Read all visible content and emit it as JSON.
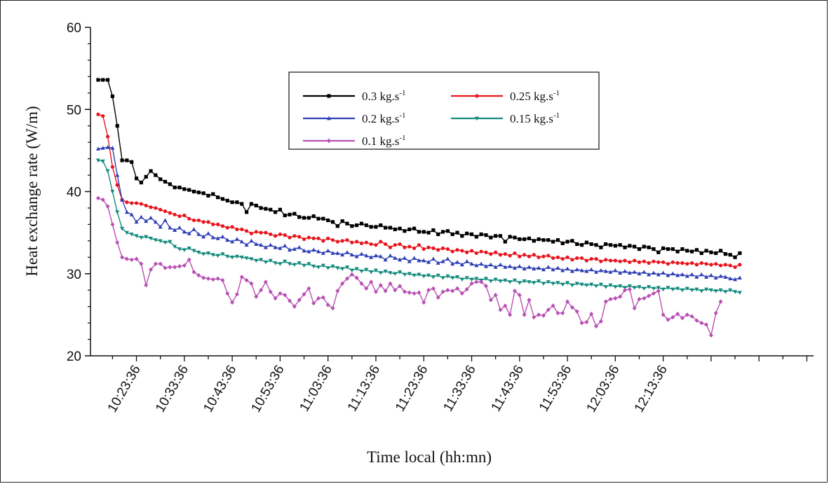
{
  "chart_data": {
    "type": "line",
    "title": "",
    "xlabel": "Time local (hh:mn)",
    "ylabel": "Heat exchange rate (W/m)",
    "ylim": [
      20,
      60
    ],
    "yticks": [
      "20",
      "30",
      "40",
      "50",
      "60"
    ],
    "xtick_labels": [
      "10:23:36",
      "10:33:36",
      "10:43:36",
      "10:53:36",
      "11:03:36",
      "11:13:36",
      "11:23:36",
      "11:33:36",
      "11:43:36",
      "11:53:36",
      "12:03:36",
      "12:13:36"
    ],
    "x_start": "10:15:36",
    "x_end": "12:29:36",
    "x_step_seconds": 60,
    "xlim": [
      "10:14:00",
      "12:45:00"
    ],
    "grid": false,
    "legend_position": "top-center",
    "series": [
      {
        "name": "0.3 kg.s-1",
        "legend_base": "0.3 kg.s",
        "legend_sup": "-1",
        "color": "#000000",
        "marker": "square",
        "values": [
          53.6,
          53.6,
          53.6,
          51.6,
          48,
          43.8,
          43.8,
          43.6,
          41.6,
          41.1,
          41.8,
          42.5,
          42,
          41.5,
          41.2,
          40.9,
          40.5,
          40.5,
          40.3,
          40.2,
          40,
          39.9,
          39.8,
          39.5,
          39.7,
          39.3,
          39.1,
          38.9,
          38.7,
          38.7,
          38.5,
          37.5,
          38.5,
          38.3,
          38,
          37.9,
          37.8,
          37.5,
          37.8,
          37.1,
          37.2,
          37.3,
          36.9,
          36.8,
          36.8,
          37,
          36.7,
          36.7,
          36.5,
          36.3,
          35.8,
          36.4,
          36.1,
          35.8,
          35.9,
          36.1,
          35.9,
          35.7,
          35.7,
          35.9,
          35.6,
          35.6,
          35.4,
          35.5,
          35.2,
          35.4,
          35.5,
          35.1,
          35.1,
          35.0,
          35.3,
          34.8,
          35.1,
          35.2,
          34.8,
          35.0,
          34.6,
          34.9,
          34.8,
          34.5,
          34.8,
          34.7,
          34.4,
          34.6,
          34.6,
          33.9,
          34.5,
          34.4,
          34.2,
          34.2,
          34.3,
          34,
          34.2,
          34.1,
          34.1,
          33.9,
          34.1,
          33.7,
          33.9,
          34.0,
          33.6,
          33.5,
          33.8,
          33.6,
          33.5,
          33.2,
          33.6,
          33.5,
          33.4,
          33.5,
          33.2,
          33.4,
          33.3,
          33.0,
          33.3,
          33.2,
          33.0,
          32.6,
          33.1,
          33.0,
          33.0,
          32.7,
          33.0,
          32.8,
          32.7,
          32.9,
          32.5,
          32.8,
          32.6,
          32.5,
          32.8,
          32.4,
          32.3,
          32.0,
          32.5
        ]
      },
      {
        "name": "0.25 kg.s-1",
        "legend_base": "0.25 kg.s",
        "legend_sup": "-1",
        "color": "#e8161e",
        "marker": "circle",
        "values": [
          49.4,
          49.2,
          46.7,
          43,
          40.8,
          39,
          38.7,
          38.6,
          38.6,
          38.5,
          38.3,
          38.1,
          38,
          37.8,
          37.6,
          37.4,
          37.2,
          37.0,
          37.1,
          36.7,
          36.5,
          36.5,
          36.3,
          36.3,
          36.0,
          36,
          35.8,
          35.6,
          35.7,
          35.4,
          35.4,
          35.2,
          34.9,
          35.1,
          35.0,
          35.0,
          34.8,
          34.6,
          34.8,
          34.7,
          34.4,
          34.6,
          34.5,
          34.2,
          34.4,
          34.3,
          34.3,
          34.0,
          34.3,
          34.1,
          33.9,
          34.0,
          34.1,
          33.8,
          33.9,
          33.7,
          33.8,
          33.6,
          33.5,
          33.9,
          33.6,
          33.2,
          33.5,
          33.6,
          33.2,
          33.3,
          33.1,
          33.5,
          33.0,
          33.2,
          33.1,
          32.9,
          33.1,
          33.0,
          32.7,
          32.9,
          32.8,
          32.6,
          32.8,
          32.5,
          32.7,
          32.6,
          32.4,
          32.6,
          32.3,
          32.4,
          32.2,
          32.5,
          32.1,
          32.3,
          32.1,
          32.3,
          32.0,
          32.1,
          32.2,
          31.9,
          32.0,
          31.8,
          32.0,
          31.7,
          31.9,
          31.9,
          31.6,
          31.8,
          31.8,
          31.5,
          31.7,
          31.6,
          31.6,
          31.5,
          31.6,
          31.4,
          31.6,
          31.4,
          31.5,
          31.3,
          31.5,
          31.4,
          31.4,
          31.2,
          31.4,
          31.3,
          31.3,
          31.2,
          31.3,
          31.1,
          31.3,
          31.2,
          31.1,
          31.2,
          31.0,
          31.1,
          31.0,
          30.8,
          31.1
        ]
      },
      {
        "name": "0.2 kg.s-1",
        "legend_base": "0.2 kg.s",
        "legend_sup": "-1",
        "color": "#2e3fb5",
        "marker": "triangle",
        "values": [
          45.2,
          45.3,
          45.4,
          45.3,
          42,
          39,
          37.5,
          37.2,
          36.3,
          36.9,
          36.4,
          36.8,
          36.3,
          35.7,
          36.5,
          35.6,
          35.3,
          35.6,
          35.1,
          34.9,
          35.4,
          34.8,
          34.5,
          34.9,
          34.4,
          34.3,
          34.5,
          34.1,
          33.9,
          34.2,
          33.9,
          33.5,
          34.0,
          33.6,
          33.5,
          33.2,
          33.5,
          33.2,
          33.1,
          33.4,
          32.9,
          33.0,
          33.2,
          32.8,
          32.7,
          32.9,
          32.7,
          32.5,
          32.8,
          32.5,
          32.5,
          32.3,
          32.6,
          32.3,
          32.1,
          32.4,
          32.2,
          32.0,
          32.2,
          32.1,
          31.7,
          32.2,
          31.9,
          31.7,
          31.9,
          31.5,
          31.9,
          31.6,
          31.6,
          31.4,
          31.8,
          31.3,
          31.5,
          31.8,
          31.2,
          31.4,
          31.1,
          31.5,
          31.2,
          31.0,
          31.2,
          30.9,
          31.1,
          30.8,
          31.1,
          30.8,
          30.9,
          30.7,
          30.9,
          30.6,
          30.8,
          30.6,
          30.7,
          30.5,
          30.8,
          30.5,
          30.7,
          30.4,
          30.6,
          30.3,
          30.5,
          30.4,
          30.3,
          30.5,
          30.2,
          30.4,
          30.3,
          30.2,
          30.4,
          30.1,
          30.3,
          30.1,
          30.2,
          30.0,
          30.2,
          29.9,
          30.1,
          29.9,
          30.1,
          29.8,
          30.0,
          29.8,
          29.9,
          29.7,
          29.9,
          29.6,
          29.9,
          29.6,
          29.8,
          29.5,
          29.7,
          29.6,
          29.4,
          29.3,
          29.5
        ]
      },
      {
        "name": "0.15 kg.s-1",
        "legend_base": "0.15 kg.s",
        "legend_sup": "-1",
        "color": "#138a7e",
        "marker": "down-triangle",
        "values": [
          43.8,
          43.7,
          42.5,
          40,
          37.5,
          35.5,
          35,
          34.8,
          34.6,
          34.4,
          34.5,
          34.3,
          34.1,
          34.0,
          33.8,
          33.9,
          33.3,
          33.0,
          32.9,
          33.1,
          32.8,
          32.6,
          32.4,
          32.5,
          32.3,
          32.2,
          32.4,
          32.1,
          32.0,
          32.1,
          32.0,
          31.9,
          31.8,
          31.6,
          31.7,
          31.4,
          31.6,
          31.3,
          31.2,
          31.5,
          31.2,
          31.1,
          31.3,
          31.0,
          31.2,
          30.9,
          30.8,
          31.0,
          30.7,
          30.9,
          30.7,
          30.6,
          30.8,
          30.4,
          30.6,
          30.3,
          30.5,
          30.2,
          30.4,
          30.1,
          30.3,
          30.1,
          30.0,
          30.2,
          29.9,
          30.0,
          29.8,
          29.9,
          29.7,
          29.8,
          29.6,
          29.8,
          29.5,
          29.7,
          29.5,
          29.6,
          29.3,
          29.5,
          29.3,
          29.4,
          29.2,
          29.4,
          29.1,
          29.3,
          29.1,
          29.2,
          29.0,
          29.2,
          28.9,
          29.1,
          29.0,
          28.9,
          29.1,
          28.8,
          29.0,
          28.8,
          28.9,
          28.7,
          28.9,
          28.6,
          28.8,
          28.7,
          28.6,
          28.7,
          28.5,
          28.7,
          28.4,
          28.6,
          28.4,
          28.5,
          28.3,
          28.5,
          28.3,
          28.4,
          28.2,
          28.4,
          28.2,
          28.3,
          28.1,
          28.3,
          28.1,
          28.2,
          28.0,
          28.2,
          28.0,
          28.1,
          27.9,
          28.1,
          28.0,
          27.9,
          28.0,
          27.8,
          28.0,
          27.8,
          27.7
        ]
      },
      {
        "name": "0.1 kg.s-1",
        "legend_base": "0.1 kg.s",
        "legend_sup": "-1",
        "color": "#b84fb3",
        "marker": "diamond",
        "values": [
          39.2,
          39.0,
          38.2,
          36,
          33.8,
          32,
          31.8,
          31.7,
          31.8,
          31.2,
          28.6,
          30.5,
          31.2,
          31.2,
          30.7,
          30.8,
          30.8,
          30.9,
          31.0,
          31.7,
          30.2,
          29.8,
          29.5,
          29.4,
          29.3,
          29.4,
          29.2,
          27.6,
          26.5,
          27.5,
          29.6,
          29.2,
          28.8,
          27.2,
          28,
          29.0,
          27.8,
          27.0,
          27.6,
          27.4,
          26.7,
          26.0,
          26.8,
          27.5,
          28.2,
          26.4,
          27.0,
          27.1,
          26.2,
          25.8,
          27.9,
          28.8,
          29.4,
          29.9,
          29.5,
          28.8,
          28.2,
          29.0,
          27.8,
          28.6,
          27.9,
          28.8,
          28.0,
          28.5,
          27.8,
          27.7,
          27.6,
          27.7,
          26.5,
          28.0,
          28.2,
          27.1,
          27.8,
          28.0,
          27.9,
          28.2,
          27.6,
          28.1,
          28.8,
          29.0,
          29.0,
          28.5,
          26.8,
          27.4,
          25.6,
          26.1,
          25.0,
          27.9,
          27.4,
          25.0,
          26.8,
          24.7,
          25.0,
          24.9,
          25.6,
          26.1,
          25.2,
          25.2,
          26.6,
          25.9,
          25.4,
          24.0,
          24.1,
          25.1,
          23.6,
          24.2,
          26.6,
          26.9,
          27.0,
          27.2,
          28.0,
          28.1,
          25.8,
          26.9,
          27.0,
          27.3,
          27.6,
          27.9,
          25.0,
          24.4,
          24.7,
          25.1,
          24.6,
          25.0,
          24.8,
          24.3,
          24.0,
          23.8,
          22.5,
          25.2,
          26.6
        ]
      }
    ]
  }
}
